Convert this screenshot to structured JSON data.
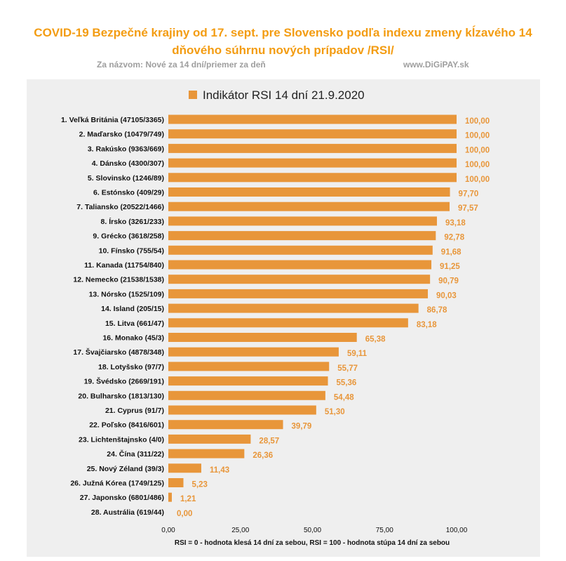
{
  "header": {
    "title": "COVID-19 Bezpečné krajiny  od 17. sept. pre Slovensko podľa indexu zmeny  kĺzavého 14 dňového súhrnu nových prípadov /RSI/",
    "subtitle_left": "Za názvom: Nové za 14 dní/priemer za deň",
    "subtitle_right": "www.DiGiPAY.sk"
  },
  "colors": {
    "bar": "#e8963a",
    "label": "#e8963a",
    "title": "#f39c12",
    "background": "#efefef"
  },
  "chart_data": {
    "type": "bar",
    "orientation": "horizontal",
    "legend": "Indikátor RSI 14 dní 21.9.2020",
    "legend_position": "top",
    "categories": [
      "1. Veľká Británia (47105/3365)",
      "2. Maďarsko (10479/749)",
      "3. Rakúsko (9363/669)",
      "4. Dánsko (4300/307)",
      "5. Slovinsko (1246/89)",
      "6. Estónsko (409/29)",
      "7. Taliansko (20522/1466)",
      "8. Írsko (3261/233)",
      "9. Grécko (3618/258)",
      "10. Fínsko (755/54)",
      "11. Kanada (11754/840)",
      "12. Nemecko (21538/1538)",
      "13. Nórsko (1525/109)",
      "14. Island (205/15)",
      "15. Litva (661/47)",
      "16. Monako (45/3)",
      "17. Švajčiarsko (4878/348)",
      "18. Lotyšsko (97/7)",
      "19. Švédsko (2669/191)",
      "20. Bulharsko (1813/130)",
      "21. Cyprus (91/7)",
      "22. Poľsko (8416/601)",
      "23. Lichtenštajnsko (4/0)",
      "24. Čína (311/22)",
      "25. Nový Zéland (39/3)",
      "26. Južná Kórea (1749/125)",
      "27. Japonsko (6801/486)",
      "28. Austrália (619/44)"
    ],
    "values": [
      100,
      100,
      100,
      100,
      100,
      97.7,
      97.57,
      93.18,
      92.78,
      91.68,
      91.25,
      90.79,
      90.03,
      86.78,
      83.18,
      65.38,
      59.11,
      55.77,
      55.36,
      54.48,
      51.3,
      39.79,
      28.57,
      26.36,
      11.43,
      5.23,
      1.21,
      0.0
    ],
    "value_labels": [
      "100,00",
      "100,00",
      "100,00",
      "100,00",
      "100,00",
      "97,70",
      "97,57",
      "93,18",
      "92,78",
      "91,68",
      "91,25",
      "90,79",
      "90,03",
      "86,78",
      "83,18",
      "65,38",
      "59,11",
      "55,77",
      "55,36",
      "54,48",
      "51,30",
      "39,79",
      "28,57",
      "26,36",
      "11,43",
      "5,23",
      "1,21",
      "0,00"
    ],
    "xlim": [
      0,
      100
    ],
    "xticks": [
      0,
      25,
      50,
      75,
      100
    ],
    "xtick_labels": [
      "0,00",
      "25,00",
      "50,00",
      "75,00",
      "100,00"
    ],
    "xlabel": "RSI = 0 - hodnota klesá 14 dní za sebou, RSI = 100 - hodnota stúpa 14 dní za sebou",
    "grid": false
  }
}
